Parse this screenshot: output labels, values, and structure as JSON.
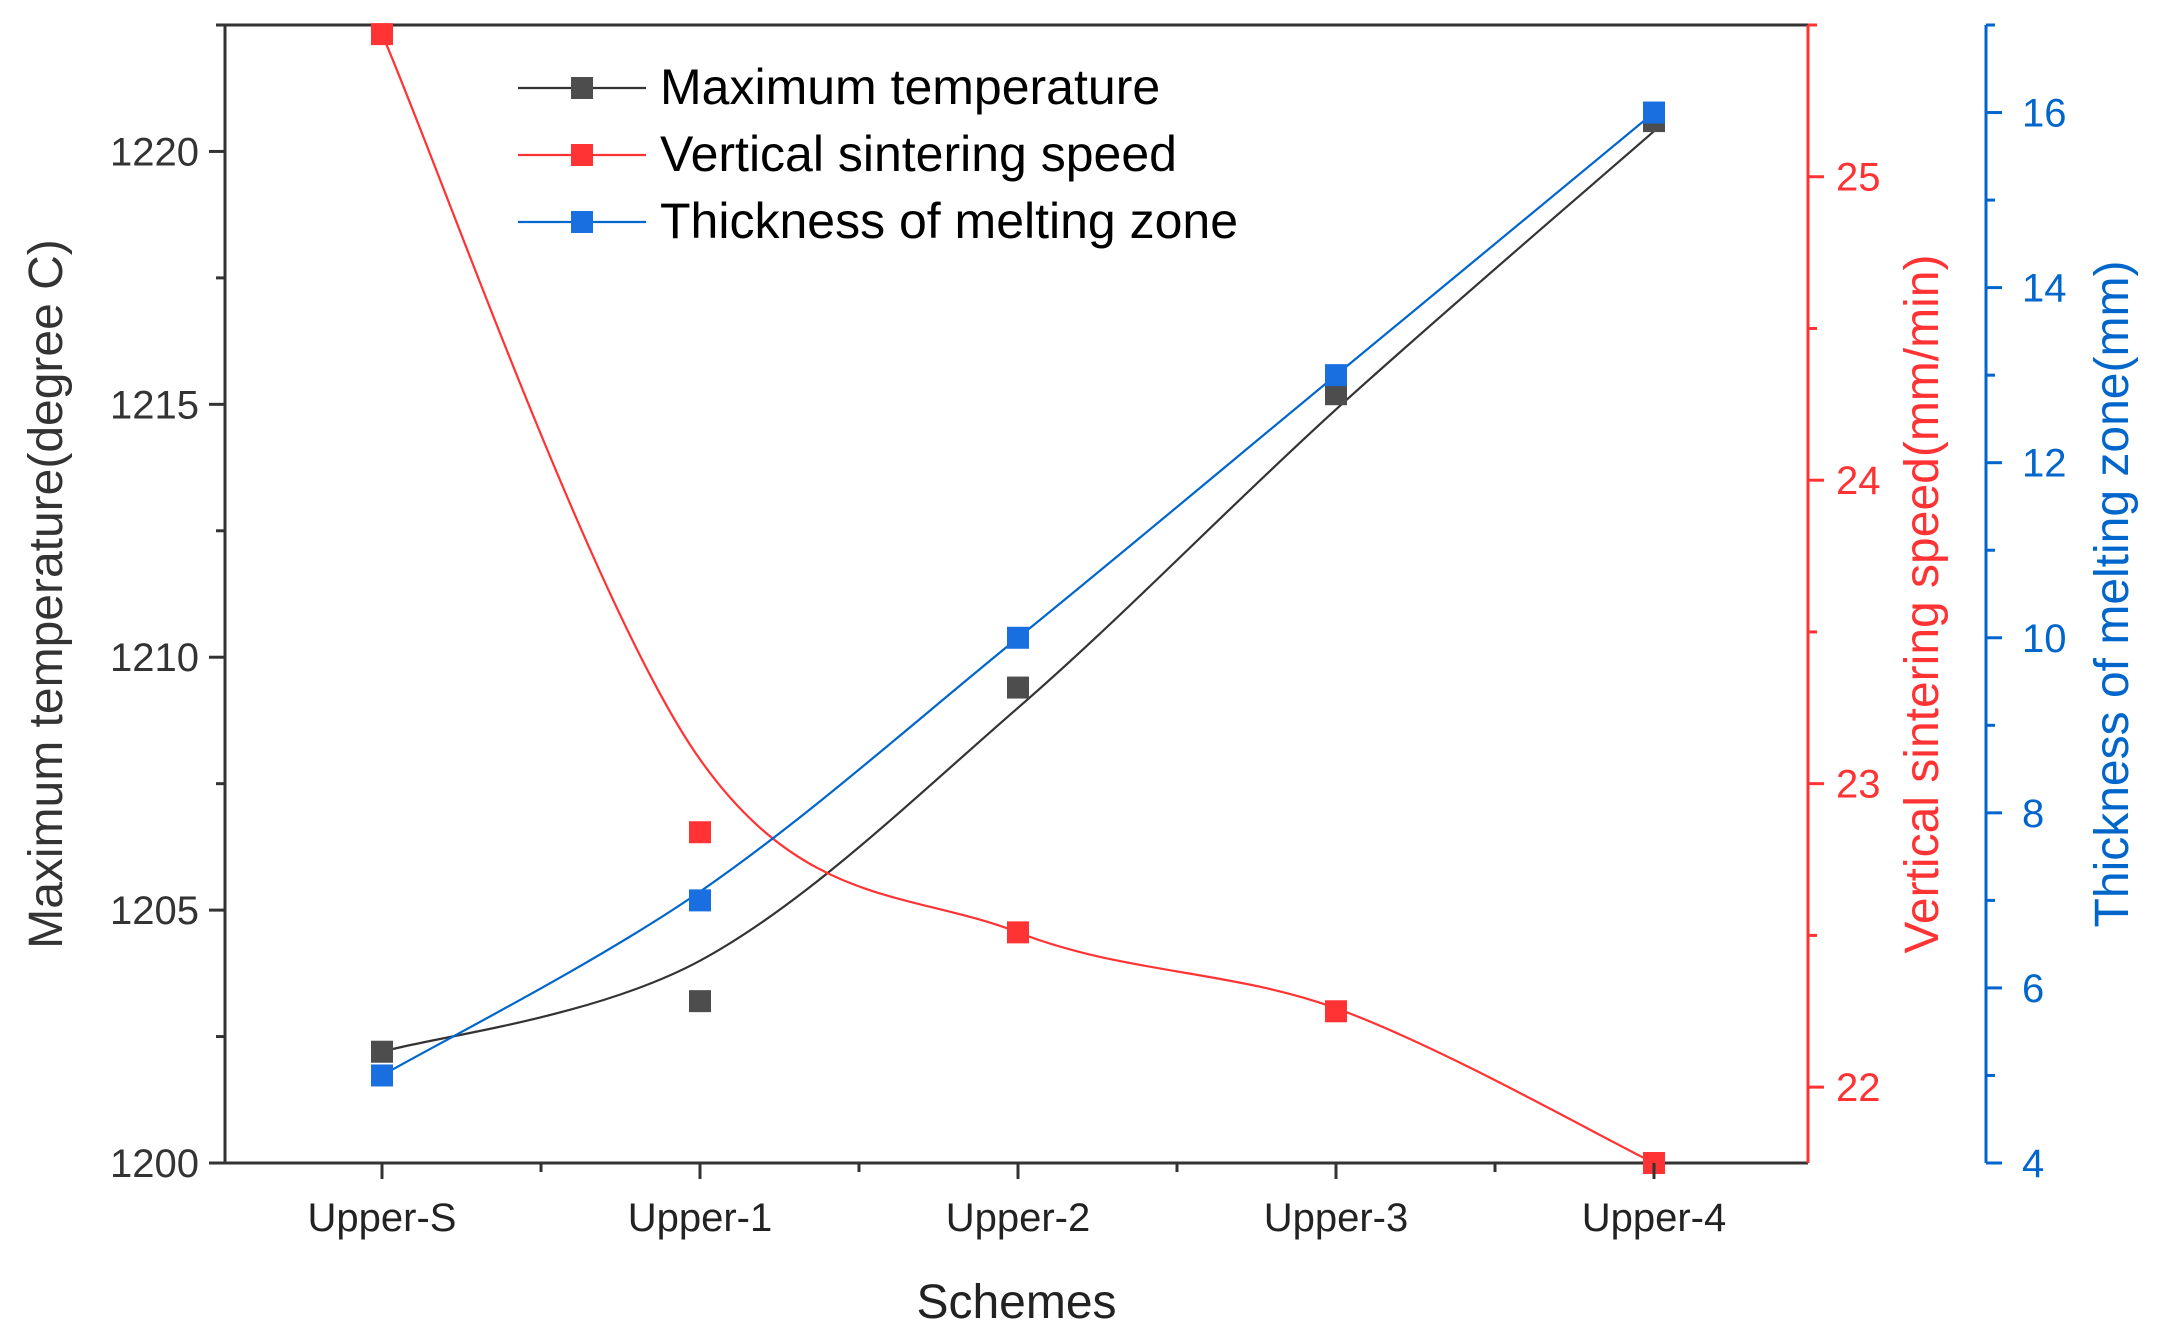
{
  "chart_data": {
    "type": "line",
    "xlabel": "Schemes",
    "categories": [
      "Upper-S",
      "Upper-1",
      "Upper-2",
      "Upper-3",
      "Upper-4"
    ],
    "axes": {
      "left": {
        "label": "Maximum temperature(degree C)",
        "ylim": [
          1200,
          1222.5
        ],
        "ticks": [
          1200,
          1205,
          1210,
          1215,
          1220
        ],
        "color": "#333333"
      },
      "right1": {
        "label": "Vertical sintering speed(mm/min)",
        "ylim": [
          21.75,
          25.5
        ],
        "ticks": [
          22,
          23,
          24,
          25
        ],
        "color": "#ff3333"
      },
      "right2": {
        "label": "Thickness of melting zone(mm)",
        "ylim": [
          4,
          17
        ],
        "ticks": [
          4,
          6,
          8,
          10,
          12,
          14,
          16
        ],
        "color": "#0066cc"
      }
    },
    "series": [
      {
        "name": "Maximum temperature",
        "axis": "left",
        "color": "#4d4d4d",
        "line_color": "#333333",
        "values": [
          1202.2,
          1203.2,
          1209.4,
          1215.2,
          1220.6
        ]
      },
      {
        "name": "Vertical sintering speed",
        "axis": "right1",
        "color": "#ff3333",
        "line_color": "#ff3333",
        "values": [
          25.47,
          22.84,
          22.51,
          22.25,
          21.75
        ]
      },
      {
        "name": "Thickness of melting zone",
        "axis": "right2",
        "color": "#1a6fe0",
        "line_color": "#0066cc",
        "values": [
          5.0,
          7.0,
          10.0,
          13.0,
          16.0
        ]
      }
    ],
    "legend": "top-left"
  }
}
